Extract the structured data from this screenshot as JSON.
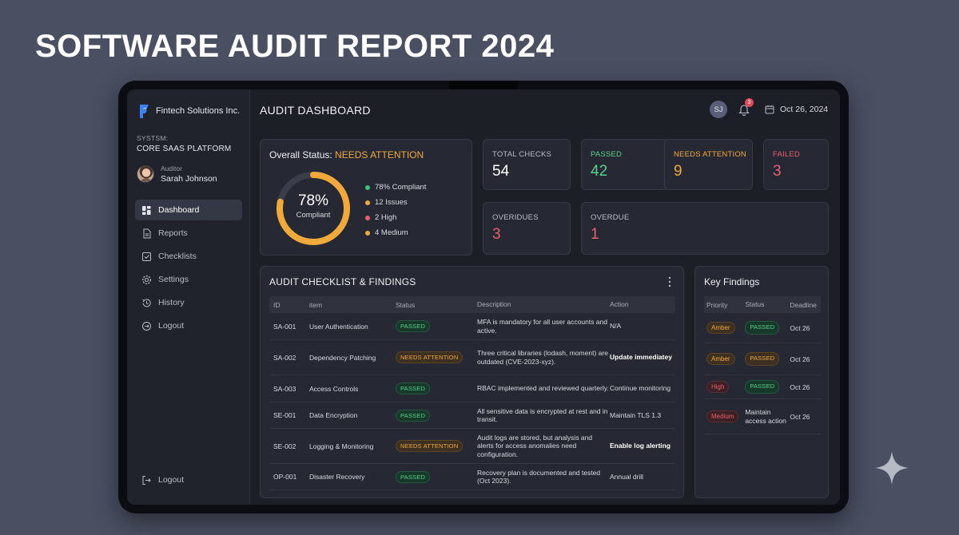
{
  "page_title": "SOFTWARE AUDIT REPORT 2024",
  "brand": {
    "name": "Fintech Solutions Inc."
  },
  "system": {
    "label": "SYSTSM:",
    "value": "CORE SAAS PLATFORM"
  },
  "auditor": {
    "label": "Auditor",
    "name": "Sarah Johnson"
  },
  "nav": [
    {
      "label": "Dashboard",
      "icon": "grid-icon",
      "active": true
    },
    {
      "label": "Reports",
      "icon": "document-icon"
    },
    {
      "label": "Checklists",
      "icon": "checkbox-icon"
    },
    {
      "label": "Settings",
      "icon": "gear-icon"
    },
    {
      "label": "History",
      "icon": "history-icon"
    },
    {
      "label": "Logout",
      "icon": "logout-icon"
    }
  ],
  "nav_bottom": {
    "label": "Logout",
    "icon": "logout-icon"
  },
  "header": {
    "title": "AUDIT DASHBOARD",
    "user_initials": "SJ",
    "notification_count": "3",
    "date": "Oct 26, 2024"
  },
  "overall": {
    "title_prefix": "Overall Status:",
    "status": "NEEDS ATTENTION",
    "percent": "78%",
    "percent_label": "Compliant",
    "compliance_fraction": 0.78,
    "legend": [
      {
        "label": "78% Compliant",
        "color": "#3fbf78"
      },
      {
        "label": "12 Issues",
        "color": "#f0a93a"
      },
      {
        "label": "2 High",
        "color": "#e8606b"
      },
      {
        "label": "4 Medium",
        "color": "#f0a93a"
      }
    ]
  },
  "metrics": {
    "total": {
      "label": "TOTAL CHECKS",
      "value": "54",
      "color": "#ffffff"
    },
    "passed": {
      "label": "PASSED",
      "value": "42",
      "color": "#5ad08b"
    },
    "needs": {
      "label": "NEEDS ATTENTION",
      "value": "9",
      "color": "#f0a93a"
    },
    "failed": {
      "label": "FAILED",
      "value": "3",
      "color": "#e8606b"
    },
    "overdues": {
      "label": "OVERIDUES",
      "value": "3",
      "color": "#e8606b"
    },
    "overdue": {
      "label": "OVERDUE",
      "value": "1",
      "color": "#e8606b"
    }
  },
  "checklist": {
    "title": "AUDIT CHECKLIST & FINDINGS",
    "columns": [
      "ID",
      "item",
      "Status",
      "Description",
      "Action"
    ],
    "rows": [
      {
        "id": "SA-001",
        "item": "User Authentication",
        "status": "PASSED",
        "status_type": "pass",
        "description": "MFA is mandatory for all user accounts and active.",
        "action": "N/A",
        "action_bold": false
      },
      {
        "id": "SA-002",
        "item": "Dependency Patching",
        "status": "NEEDS ATTENTION",
        "status_type": "warn",
        "description": "Three critical libraries (lodash, moment) are outdated (CVE-2023-xyz).",
        "action": "Update immediatey",
        "action_bold": true
      },
      {
        "id": "SA-003",
        "item": "Access Controls",
        "status": "PASSED",
        "status_type": "pass",
        "description": "RBAC implemented and reviewed quarterly.",
        "action": "Continue monitoring",
        "action_bold": false
      },
      {
        "id": "SE-001",
        "item": "Data Encryption",
        "status": "PASSED",
        "status_type": "pass",
        "description": "All sensitive data is encrypted at rest and in transit.",
        "action": "Maintain TLS 1.3",
        "action_bold": false
      },
      {
        "id": "SE-002",
        "item": "Logging & Monitoring",
        "status": "NEEDS ATTENTION",
        "status_type": "warn",
        "description": "Audit logs are stored, but analysis and alerts for access anomalies need configuration.",
        "action": "Enable log alerting",
        "action_bold": true
      },
      {
        "id": "OP-001",
        "item": "Disaster Recovery",
        "status": "PASSED",
        "status_type": "pass",
        "description": "Recovery plan is documented and tested (Oct 2023).",
        "action": "Annual drill",
        "action_bold": false
      }
    ]
  },
  "findings": {
    "title": "Key Findings",
    "columns": [
      "Priority",
      "Status",
      "Deadline"
    ],
    "rows": [
      {
        "priority": "Amber",
        "priority_type": "amber",
        "status": "PASSED",
        "status_type": "pass",
        "deadline": "Oct 26"
      },
      {
        "priority": "Amber",
        "priority_type": "amber",
        "status": "PASSED",
        "status_type": "warn",
        "deadline": "Oct 26"
      },
      {
        "priority": "High",
        "priority_type": "high",
        "status": "PASSED",
        "status_type": "pass",
        "deadline": "Oct 26"
      },
      {
        "priority": "Medium",
        "priority_type": "medium",
        "status": "Maintain access action",
        "status_type": "text",
        "deadline": "Oct 26"
      }
    ]
  }
}
